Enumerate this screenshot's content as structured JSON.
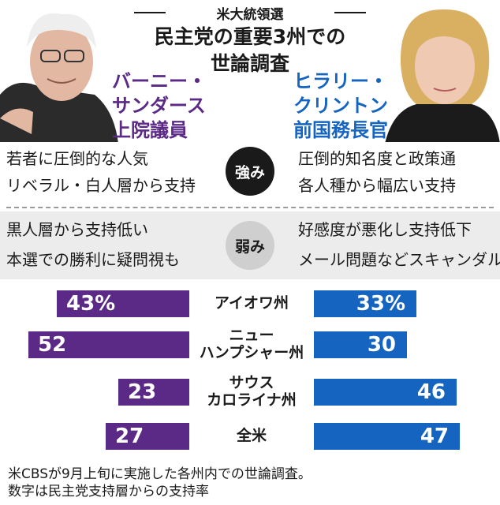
{
  "kicker": "米大統領選",
  "headline": [
    "民主党の重要3州での",
    "世論調査"
  ],
  "candidates": {
    "left": {
      "name_lines": [
        "バーニー・",
        "サンダース",
        "上院議員"
      ],
      "color": "#5b2a86"
    },
    "right": {
      "name_lines": [
        "ヒラリー・",
        "クリントン",
        "前国務長官"
      ],
      "color": "#1565c0"
    }
  },
  "strengths": {
    "label": "強み",
    "left": [
      "若者に圧倒的な人気",
      "リベラル・白人層から支持"
    ],
    "right": [
      "圧倒的知名度と政策通",
      "各人種から幅広い支持"
    ]
  },
  "weaknesses": {
    "label": "弱み",
    "left": [
      "黒人層から支持低い",
      "本選での勝利に疑問視も"
    ],
    "right": [
      "好感度が悪化し支持低下",
      "メール問題などスキャンダル"
    ]
  },
  "chart_data": {
    "type": "bar",
    "categories": [
      "アイオワ州",
      "ニュー\nハンプシャー州",
      "サウス\nカロライナ州",
      "全米"
    ],
    "series": [
      {
        "name": "バーニー・サンダース上院議員",
        "values": [
          43,
          52,
          23,
          27
        ],
        "color": "#5b2a86"
      },
      {
        "name": "ヒラリー・クリントン前国務長官",
        "values": [
          33,
          30,
          46,
          47
        ],
        "color": "#1565c0"
      }
    ],
    "value_labels_left": [
      "43%",
      "52",
      "23",
      "27"
    ],
    "value_labels_right": [
      "33%",
      "30",
      "46",
      "47"
    ],
    "unit": "%",
    "ylim": [
      0,
      60
    ]
  },
  "notes": [
    "米CBSが9月上旬に実施した各州内での世論調査。",
    "数字は民主党支持層からの支持率"
  ]
}
